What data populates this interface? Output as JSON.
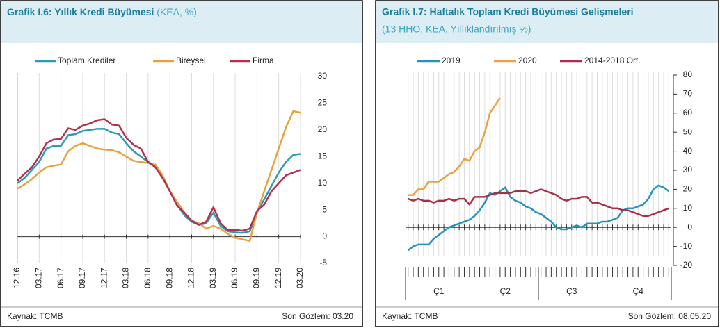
{
  "chart_data": [
    {
      "type": "line",
      "title": "Grafik I.6: Yıllık Kredi Büyümesi",
      "subtitle": "(KEA, %)",
      "source": "Kaynak: TCMB",
      "note": "Son Gözlem: 03.20",
      "categories": [
        "12.16",
        null,
        null,
        "03.17",
        null,
        null,
        "06.17",
        null,
        null,
        "09.17",
        null,
        null,
        "12.17",
        null,
        null,
        "03.18",
        null,
        null,
        "06.18",
        null,
        null,
        "09.18",
        null,
        null,
        "12.18",
        null,
        null,
        "03.19",
        null,
        null,
        "06.19",
        null,
        null,
        "09.19",
        null,
        null,
        "12.19",
        null,
        null,
        "03.20"
      ],
      "series": [
        {
          "name": "Toplam Krediler",
          "color": "#2a9bb5",
          "values": [
            10,
            11,
            12.5,
            14,
            16.5,
            17,
            17,
            19,
            19.2,
            19.8,
            20,
            20.2,
            20.2,
            19.5,
            19.2,
            17.5,
            16,
            15,
            14,
            13.2,
            11,
            8.5,
            6,
            4,
            2.8,
            2.2,
            2.5,
            4.5,
            2,
            1,
            0.8,
            0.7,
            1,
            4.5,
            7,
            9.5,
            12,
            14,
            15.3,
            15.5
          ]
        },
        {
          "name": "Bireysel",
          "color": "#e8a13f",
          "values": [
            9,
            9.8,
            10.8,
            12,
            13,
            13.3,
            13.5,
            16,
            17,
            17.5,
            17,
            16.5,
            16.3,
            16.2,
            15.8,
            15,
            14.2,
            14,
            13.8,
            13.5,
            11.5,
            8.5,
            6.5,
            4.5,
            3,
            2.5,
            1.5,
            2,
            1.5,
            0.5,
            -0.2,
            -0.5,
            -0.8,
            4.5,
            8.5,
            12.5,
            16.5,
            20.5,
            23.5,
            23.2
          ]
        },
        {
          "name": "Firma",
          "color": "#b3304c",
          "values": [
            10.5,
            11.8,
            13,
            15,
            17.5,
            18.2,
            18.3,
            20.3,
            20,
            20.8,
            21.2,
            21.8,
            22,
            21,
            20.8,
            18.5,
            17.2,
            16.5,
            14,
            13,
            11,
            8.5,
            5.8,
            4.5,
            3,
            2.2,
            2.8,
            5.5,
            2.5,
            1.2,
            1.3,
            1.1,
            1.5,
            4.8,
            6,
            8.5,
            10,
            11.5,
            12,
            12.5
          ]
        }
      ],
      "ylim": [
        -5,
        30
      ],
      "yticks": [
        -5,
        0,
        5,
        10,
        15,
        20,
        25,
        30
      ],
      "grid": "x",
      "legend": "top"
    },
    {
      "type": "line",
      "title": "Grafik I.7: Haftalık Toplam Kredi Büyümesi Gelişmeleri",
      "subtitle": "(13 HHO, KEA, Yıllıklandırılmış %)",
      "source": "Kaynak: TCMB",
      "note": "Son Gözlem: 08.05.20",
      "categories": [
        null,
        null,
        null,
        null,
        null,
        null,
        null,
        null,
        null,
        null,
        null,
        null,
        null,
        null,
        null,
        null,
        null,
        null,
        null,
        null,
        null,
        null,
        null,
        null,
        null,
        null,
        null,
        null,
        null,
        null,
        null,
        null,
        null,
        null,
        null,
        null,
        null,
        null,
        null,
        null,
        null,
        null,
        null,
        null,
        null,
        null,
        null,
        null,
        null,
        null,
        null,
        null
      ],
      "category_groups": [
        {
          "label": "Ç1",
          "count": 13
        },
        {
          "label": "Ç2",
          "count": 13
        },
        {
          "label": "Ç3",
          "count": 13
        },
        {
          "label": "Ç4",
          "count": 13
        }
      ],
      "series": [
        {
          "name": "2019",
          "color": "#2494bd",
          "values": [
            -12,
            -10,
            -9,
            -9,
            -9,
            -6,
            -4,
            -2,
            0,
            1,
            2,
            3,
            4,
            6,
            9,
            13,
            18,
            17,
            19,
            21,
            16,
            14,
            13,
            11,
            10,
            8,
            7,
            5,
            3,
            0,
            -1,
            -1,
            0,
            1,
            0,
            2,
            2,
            2,
            3,
            3,
            4,
            5,
            9,
            10,
            10,
            11,
            12,
            15,
            20,
            22,
            21,
            19
          ]
        },
        {
          "name": "2020",
          "color": "#eba041",
          "values": [
            17,
            17,
            20,
            20,
            24,
            24,
            24,
            26,
            28,
            29,
            32,
            36,
            35,
            40,
            42,
            50,
            60,
            64,
            68,
            null,
            null,
            null,
            null,
            null,
            null,
            null,
            null,
            null,
            null,
            null,
            null,
            null,
            null,
            null,
            null,
            null,
            null,
            null,
            null,
            null,
            null,
            null,
            null,
            null,
            null,
            null,
            null,
            null,
            null,
            null,
            null,
            null
          ]
        },
        {
          "name": "2014-2018 Ort.",
          "color": "#a6304a",
          "values": [
            15,
            14,
            15,
            14,
            14,
            13,
            14,
            14,
            15,
            14,
            15,
            15,
            12,
            16,
            16,
            16,
            17,
            18,
            18,
            18,
            18,
            19,
            19,
            19,
            18,
            19,
            20,
            19,
            18,
            17,
            15,
            14,
            15,
            15,
            16,
            16,
            13,
            13,
            12,
            11,
            10,
            10,
            9,
            9,
            8,
            7,
            6,
            6,
            7,
            8,
            9,
            10
          ]
        }
      ],
      "ylim": [
        -20,
        80
      ],
      "yticks": [
        -20,
        -10,
        0,
        10,
        20,
        30,
        40,
        50,
        60,
        70,
        80
      ],
      "grid": "x",
      "legend": "top"
    }
  ]
}
